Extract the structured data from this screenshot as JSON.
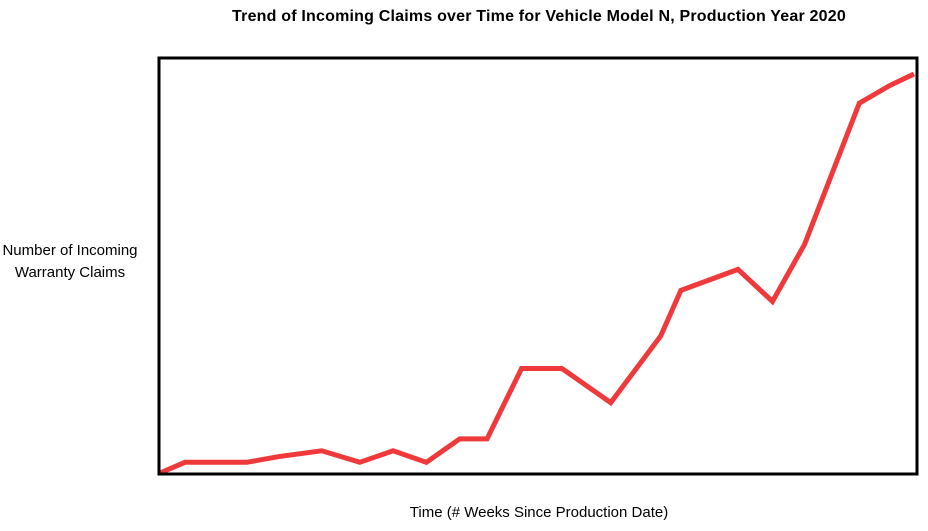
{
  "chart_data": {
    "type": "line",
    "title": "Trend of Incoming Claims over Time for Vehicle Model N, Production Year 2020",
    "xlabel": "Time (# Weeks Since Production Date)",
    "ylabel": "Number of Incoming Warranty Claims",
    "grid": false,
    "legend": "none",
    "axis_ticks": "none",
    "series": [
      {
        "color": "#f0393a",
        "points": [
          [
            0,
            0.0
          ],
          [
            2.1,
            2.6
          ],
          [
            7.3,
            2.6
          ],
          [
            10.0,
            4.0
          ],
          [
            13.6,
            5.4
          ],
          [
            16.8,
            2.6
          ],
          [
            19.6,
            5.4
          ],
          [
            22.4,
            2.6
          ],
          [
            25.2,
            8.3
          ],
          [
            27.5,
            8.3
          ],
          [
            30.4,
            25.4
          ],
          [
            33.8,
            25.4
          ],
          [
            37.9,
            17.1
          ],
          [
            42.1,
            33.3
          ],
          [
            43.8,
            44.4
          ],
          [
            48.6,
            49.5
          ],
          [
            51.5,
            41.7
          ],
          [
            54.2,
            55.6
          ],
          [
            58.8,
            89.9
          ],
          [
            61.3,
            94.1
          ],
          [
            63.4,
            97.0
          ]
        ]
      }
    ],
    "xlim": [
      0,
      63.4
    ],
    "ylim": [
      0,
      97.0
    ]
  }
}
